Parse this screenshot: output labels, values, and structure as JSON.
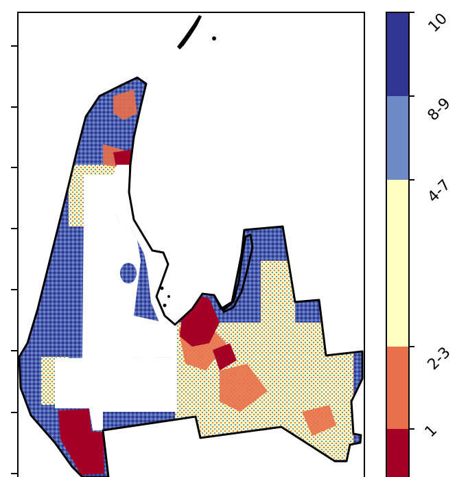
{
  "map": {
    "classes": [
      {
        "label": "1",
        "color": "#a50026"
      },
      {
        "label": "2-3",
        "color": "#e8704a"
      },
      {
        "label": "4-7",
        "color": "#ffffc0"
      },
      {
        "label": "8-9",
        "color": "#6d8ac6"
      },
      {
        "label": "10",
        "color": "#313695"
      }
    ],
    "colorbar_ticks": [
      "1",
      "2-3",
      "4-7",
      "8-9",
      "10"
    ]
  }
}
